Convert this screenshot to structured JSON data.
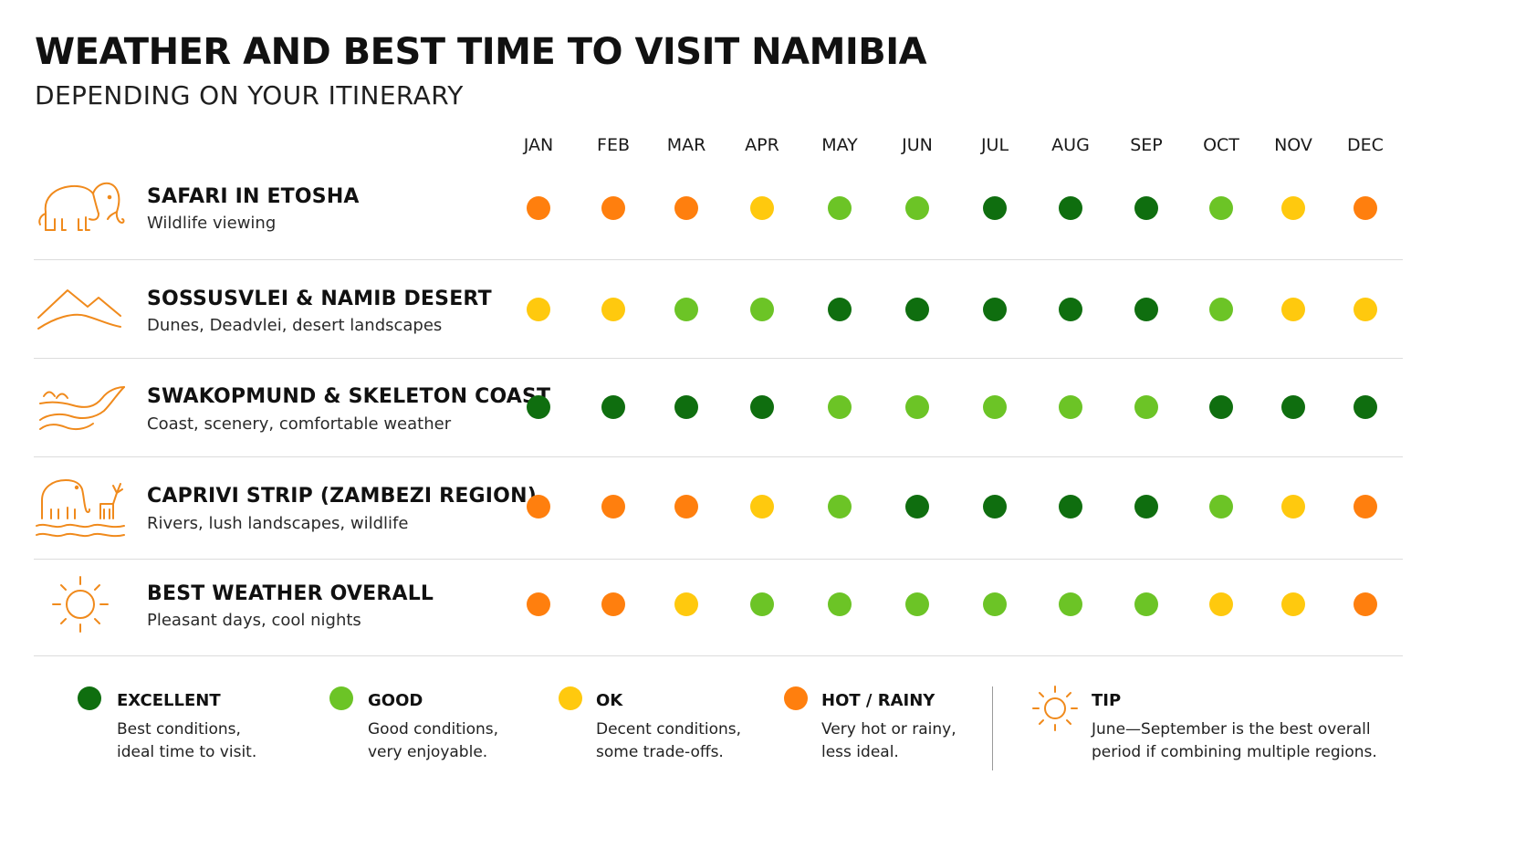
{
  "title": "WEATHER AND BEST TIME TO VISIT NAMIBIA",
  "subtitle": "DEPENDING ON YOUR ITINERARY",
  "colors": {
    "excellent": "#0f6e0f",
    "good": "#6cc426",
    "ok": "#ffc90e",
    "hot_rainy": "#ff7f0e",
    "icon": "#f08a1c"
  },
  "chart_data": {
    "type": "table",
    "title": "WEATHER AND BEST TIME TO VISIT NAMIBIA",
    "subtitle": "DEPENDING ON YOUR ITINERARY",
    "months": [
      "JAN",
      "FEB",
      "MAR",
      "APR",
      "MAY",
      "JUN",
      "JUL",
      "AUG",
      "SEP",
      "OCT",
      "NOV",
      "DEC"
    ],
    "rows": [
      {
        "title": "SAFARI IN ETOSHA",
        "subtitle": "Wildlife viewing",
        "icon": "elephant-icon",
        "ratings": [
          "hot_rainy",
          "hot_rainy",
          "hot_rainy",
          "ok",
          "good",
          "good",
          "excellent",
          "excellent",
          "excellent",
          "good",
          "ok",
          "hot_rainy"
        ]
      },
      {
        "title": "SOSSUSVLEI & NAMIB DESERT",
        "subtitle": "Dunes, Deadvlei, desert landscapes",
        "icon": "dunes-icon",
        "ratings": [
          "ok",
          "ok",
          "good",
          "good",
          "excellent",
          "excellent",
          "excellent",
          "excellent",
          "excellent",
          "good",
          "ok",
          "ok"
        ]
      },
      {
        "title": "SWAKOPMUND & SKELETON COAST",
        "subtitle": "Coast, scenery, comfortable weather",
        "icon": "coast-icon",
        "ratings": [
          "excellent",
          "excellent",
          "excellent",
          "excellent",
          "good",
          "good",
          "good",
          "good",
          "good",
          "excellent",
          "excellent",
          "excellent"
        ]
      },
      {
        "title": "CAPRIVI STRIP (ZAMBEZI REGION)",
        "subtitle": "Rivers, lush landscapes, wildlife",
        "icon": "river-wildlife-icon",
        "ratings": [
          "hot_rainy",
          "hot_rainy",
          "hot_rainy",
          "ok",
          "good",
          "excellent",
          "excellent",
          "excellent",
          "excellent",
          "good",
          "ok",
          "hot_rainy"
        ]
      },
      {
        "title": "BEST WEATHER OVERALL",
        "subtitle": "Pleasant days, cool nights",
        "icon": "sun-icon",
        "ratings": [
          "hot_rainy",
          "hot_rainy",
          "ok",
          "good",
          "good",
          "good",
          "good",
          "good",
          "good",
          "ok",
          "ok",
          "hot_rainy"
        ]
      }
    ]
  },
  "legend": [
    {
      "key": "excellent",
      "title": "EXCELLENT",
      "desc_line1": "Best conditions,",
      "desc_line2": "ideal time to visit."
    },
    {
      "key": "good",
      "title": "GOOD",
      "desc_line1": "Good conditions,",
      "desc_line2": "very enjoyable."
    },
    {
      "key": "ok",
      "title": "OK",
      "desc_line1": "Decent conditions,",
      "desc_line2": "some trade-offs."
    },
    {
      "key": "hot_rainy",
      "title": "HOT / RAINY",
      "desc_line1": "Very hot or rainy,",
      "desc_line2": "less ideal."
    }
  ],
  "tip": {
    "title": "TIP",
    "line1": "June—September is the best overall",
    "line2": "period if combining multiple regions.",
    "icon": "sun-icon"
  }
}
